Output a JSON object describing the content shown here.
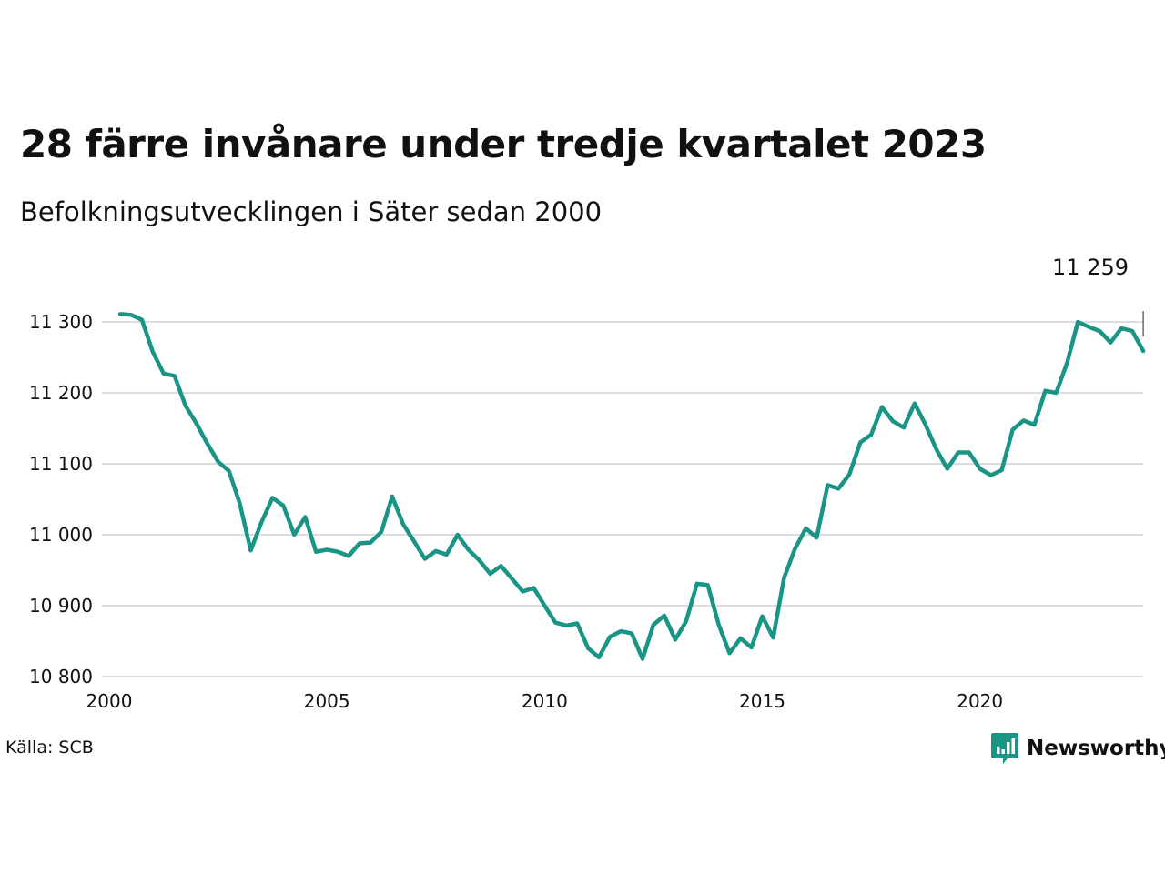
{
  "chart_data": {
    "type": "line",
    "title": "28 färre invånare under tredje kvartalet 2023",
    "subtitle": "Befolkningsutvecklingen i Säter sedan 2000",
    "source": "Källa: SCB",
    "brand": "Newsworthy",
    "xlabel": "",
    "ylabel": "",
    "xlim": [
      2000,
      2024.25
    ],
    "ylim": [
      10800,
      11310
    ],
    "grid": true,
    "x_ticks": [
      2000,
      2005,
      2010,
      2015,
      2020
    ],
    "y_ticks": [
      10800,
      10900,
      11000,
      11100,
      11200,
      11300
    ],
    "x_tick_labels": [
      "2000",
      "2005",
      "2010",
      "2015",
      "2020"
    ],
    "y_tick_labels": [
      "10 800",
      "10 900",
      "11 000",
      "11 100",
      "11 200",
      "11 300"
    ],
    "end_label": "11 259",
    "line_color": "#1a9585",
    "grid_color": "#dddddd",
    "series": [
      {
        "x": [
          2000.25,
          2000.5,
          2000.75,
          2001.0,
          2001.25,
          2001.5,
          2001.75,
          2002.0,
          2002.25,
          2002.5,
          2002.75,
          2003.0,
          2003.25,
          2003.5,
          2003.75,
          2004.0,
          2004.25,
          2004.5,
          2004.75,
          2005.0,
          2005.25,
          2005.5,
          2005.75,
          2006.0,
          2006.25,
          2006.5,
          2006.75,
          2007.0,
          2007.25,
          2007.5,
          2007.75,
          2008.0,
          2008.25,
          2008.5,
          2008.75,
          2009.0,
          2009.25,
          2009.5,
          2009.75,
          2010.0,
          2010.25,
          2010.5,
          2010.75,
          2011.0,
          2011.25,
          2011.5,
          2011.75,
          2012.0,
          2012.25,
          2012.5,
          2012.75,
          2013.0,
          2013.25,
          2013.5,
          2013.75,
          2014.0,
          2014.25,
          2014.5,
          2014.75,
          2015.0,
          2015.25,
          2015.5,
          2015.75,
          2016.0,
          2016.25,
          2016.5,
          2016.75,
          2017.0,
          2017.25,
          2017.5,
          2017.75,
          2018.0,
          2018.25,
          2018.5,
          2018.75,
          2019.0,
          2019.25,
          2019.5,
          2019.75,
          2020.0,
          2020.25,
          2020.5,
          2020.75,
          2021.0,
          2021.25,
          2021.5,
          2021.75,
          2022.0,
          2022.25,
          2022.5,
          2022.75,
          2023.0,
          2023.25,
          2023.5,
          2023.75
        ],
        "y": [
          11311,
          11310,
          11303,
          11258,
          11227,
          11224,
          11182,
          11157,
          11129,
          11103,
          11090,
          11044,
          10978,
          11018,
          11052,
          11041,
          11000,
          11025,
          10976,
          10979,
          10976,
          10970,
          10988,
          10989,
          11004,
          11054,
          11015,
          10991,
          10966,
          10977,
          10972,
          11000,
          10979,
          10964,
          10945,
          10956,
          10938,
          10920,
          10925,
          10900,
          10876,
          10872,
          10875,
          10840,
          10827,
          10856,
          10864,
          10861,
          10825,
          10873,
          10886,
          10852,
          10878,
          10931,
          10929,
          10873,
          10833,
          10854,
          10841,
          10885,
          10855,
          10939,
          10980,
          11009,
          10996,
          11070,
          11065,
          11085,
          11130,
          11141,
          11180,
          11160,
          11151,
          11185,
          11155,
          11120,
          11093,
          11116,
          11116,
          11093,
          11084,
          11091,
          11148,
          11161,
          11155,
          11203,
          11200,
          11242,
          11300,
          11293,
          11287,
          11271,
          11291,
          11287,
          11259
        ]
      }
    ]
  }
}
